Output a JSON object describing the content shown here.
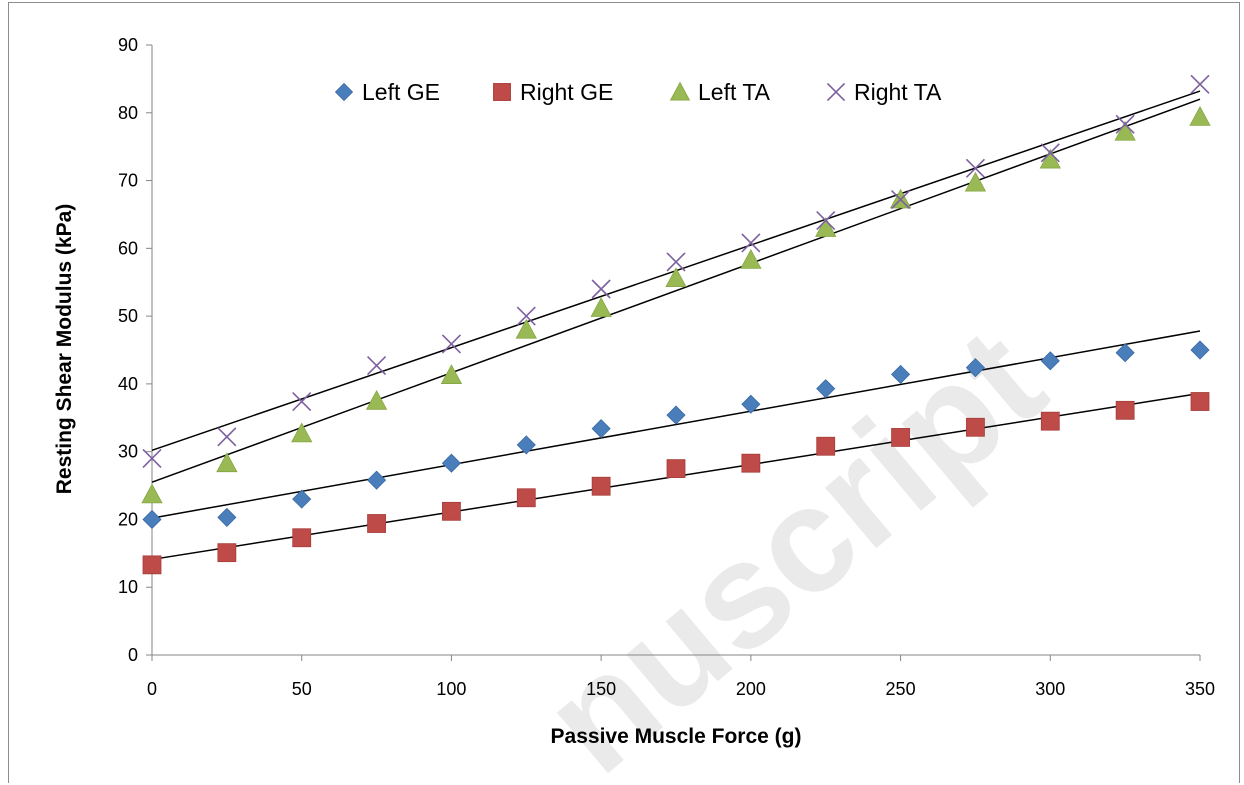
{
  "chart_data": {
    "type": "scatter",
    "title": "",
    "xlabel": "Passive Muscle Force (g)",
    "ylabel": "Resting Shear Modulus (kPa)",
    "xlim": [
      0,
      350
    ],
    "ylim": [
      0,
      90
    ],
    "xticks": [
      0,
      50,
      100,
      150,
      200,
      250,
      300,
      350
    ],
    "yticks": [
      0,
      10,
      20,
      30,
      40,
      50,
      60,
      70,
      80,
      90
    ],
    "grid": false,
    "legend_position": "top-center",
    "x": [
      0,
      25,
      50,
      75,
      100,
      125,
      150,
      175,
      200,
      225,
      250,
      275,
      300,
      325,
      350
    ],
    "series": [
      {
        "name": "Left GE",
        "marker": "diamond",
        "color": "#4a7ebb",
        "values": [
          20.0,
          20.3,
          23.0,
          25.8,
          28.3,
          31.0,
          33.4,
          35.4,
          37.0,
          39.3,
          41.4,
          42.4,
          43.4,
          44.6,
          45.0
        ],
        "trendline": [
          20.2,
          47.8
        ]
      },
      {
        "name": "Right GE",
        "marker": "square",
        "color": "#be4b48",
        "values": [
          13.3,
          15.1,
          17.3,
          19.4,
          21.2,
          23.2,
          24.9,
          27.5,
          28.3,
          30.8,
          32.1,
          33.6,
          34.5,
          36.1,
          37.4
        ],
        "trendline": [
          14.1,
          38.6
        ]
      },
      {
        "name": "Left TA",
        "marker": "triangle",
        "color": "#98b954",
        "values": [
          23.7,
          28.3,
          32.7,
          37.5,
          41.3,
          48.0,
          51.2,
          55.6,
          58.3,
          63.0,
          67.2,
          69.7,
          73.1,
          77.2,
          79.4
        ],
        "trendline": [
          25.5,
          82.0
        ]
      },
      {
        "name": "Right TA",
        "marker": "x",
        "color": "#7d60a0",
        "values": [
          29.0,
          32.2,
          37.4,
          42.7,
          45.9,
          50.0,
          54.0,
          58.0,
          60.8,
          64.1,
          67.2,
          71.8,
          74.1,
          78.3,
          84.2
        ],
        "trendline": [
          30.2,
          83.2
        ]
      }
    ],
    "watermark": "nuscript",
    "trendline_color": "#000000"
  }
}
